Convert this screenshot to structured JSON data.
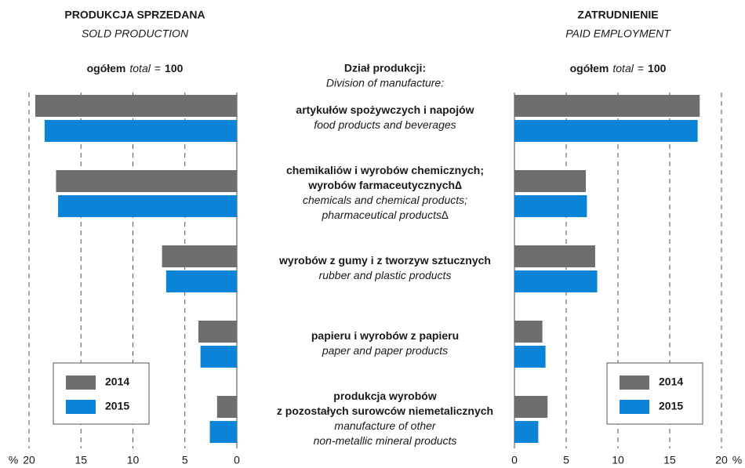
{
  "division": {
    "title_pl": "Dział produkcji:",
    "title_en": "Division of manufacture:",
    "rows": [
      {
        "pl": [
          "artykułów spożywczych i napojów"
        ],
        "en": [
          "food products and beverages"
        ]
      },
      {
        "pl": [
          "chemikaliów i wyrobów chemicznych;",
          "wyrobów farmaceutycznych∆"
        ],
        "en": [
          "chemicals and chemical products;",
          "pharmaceutical products∆"
        ]
      },
      {
        "pl": [
          "wyrobów z gumy i z tworzyw sztucznych"
        ],
        "en": [
          "rubber and plastic products"
        ]
      },
      {
        "pl": [
          "papieru i wyrobów z papieru"
        ],
        "en": [
          "paper and paper products"
        ]
      },
      {
        "pl": [
          "produkcja wyrobów",
          "z pozostałych surowców niemetalicznych"
        ],
        "en": [
          "manufacture of other",
          "non-metallic mineral products"
        ]
      }
    ]
  },
  "chart_data": [
    {
      "type": "bar",
      "orientation": "horizontal",
      "title": "PRODUKCJA SPRZEDANA",
      "subtitle": "SOLD PRODUCTION",
      "total_label": [
        "ogółem",
        "total",
        "=",
        "100"
      ],
      "x_unit": "%",
      "xlim": [
        20,
        0
      ],
      "xticks": [
        20,
        15,
        10,
        5,
        0
      ],
      "grid": true,
      "legend": "lower left",
      "series": [
        {
          "name": "2014",
          "color": "#6e6e6e",
          "values": [
            19.4,
            17.4,
            7.2,
            3.7,
            1.9
          ]
        },
        {
          "name": "2015",
          "color": "#0a84d6",
          "values": [
            18.5,
            17.2,
            6.8,
            3.5,
            2.6
          ]
        }
      ]
    },
    {
      "type": "bar",
      "orientation": "horizontal",
      "title": "ZATRUDNIENIE",
      "subtitle": "PAID EMPLOYMENT",
      "total_label": [
        "ogółem",
        "total",
        "=",
        "100"
      ],
      "x_unit": "%",
      "xlim": [
        0,
        20
      ],
      "xticks": [
        0,
        5,
        10,
        15,
        20
      ],
      "grid": true,
      "legend": "lower right",
      "series": [
        {
          "name": "2014",
          "color": "#6e6e6e",
          "values": [
            17.9,
            6.9,
            7.8,
            2.7,
            3.2
          ]
        },
        {
          "name": "2015",
          "color": "#0a84d6",
          "values": [
            17.7,
            7.0,
            8.0,
            3.0,
            2.3
          ]
        }
      ]
    }
  ]
}
